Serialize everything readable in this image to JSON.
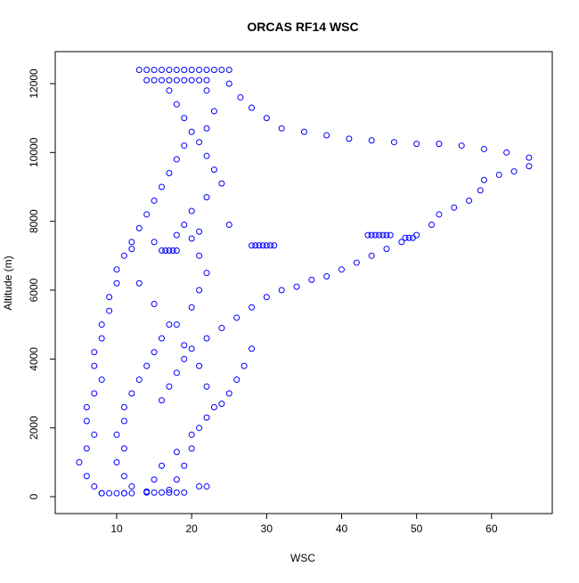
{
  "chart_data": {
    "type": "scatter",
    "title": "ORCAS RF14 WSC",
    "xlabel": "WSC",
    "ylabel": "Altitude (m)",
    "color": "#0000ff",
    "x": [
      13,
      14,
      15,
      16,
      17,
      18,
      19,
      20,
      21,
      22,
      23,
      24,
      25,
      14,
      15,
      16,
      17,
      18,
      19,
      20,
      21,
      22,
      25,
      26.5,
      28,
      30,
      32,
      35,
      38,
      41,
      44,
      47,
      50,
      53,
      56,
      59,
      62,
      65,
      65,
      63,
      61,
      59,
      58.5,
      57,
      55,
      53,
      52,
      50,
      48,
      46,
      44,
      42,
      40,
      38,
      36,
      34,
      32,
      30,
      28,
      26,
      24,
      22,
      20,
      19,
      18,
      17,
      16,
      43.5,
      44,
      44.5,
      45,
      45.5,
      46,
      46.5,
      48.5,
      49,
      49.5,
      28,
      28.5,
      29,
      29.5,
      30,
      30.5,
      31,
      16,
      16.5,
      17,
      17.5,
      18,
      17,
      18,
      19,
      20,
      19,
      18,
      17,
      16,
      15,
      14,
      13,
      12,
      11,
      10,
      10,
      9,
      9,
      8,
      8,
      7,
      7,
      8,
      7,
      6,
      6,
      7,
      6,
      5,
      6,
      7,
      8,
      22,
      23,
      22,
      21,
      22,
      23,
      24,
      22,
      20,
      19,
      20,
      21,
      22,
      21,
      20,
      18,
      16,
      15,
      14,
      13,
      12,
      11,
      11,
      10,
      11,
      10,
      11,
      12,
      11,
      8,
      9,
      10,
      11,
      12,
      14,
      15,
      16,
      17,
      18,
      19,
      21,
      22,
      13,
      15,
      17,
      19,
      21,
      22,
      23,
      21,
      20,
      19,
      18,
      17,
      28,
      27,
      26,
      25,
      24,
      22,
      20,
      18,
      16,
      15,
      14,
      25,
      21,
      18,
      15,
      12
    ],
    "values": [
      12400,
      12400,
      12400,
      12400,
      12400,
      12400,
      12400,
      12400,
      12400,
      12400,
      12400,
      12400,
      12400,
      12100,
      12100,
      12100,
      12100,
      12100,
      12100,
      12100,
      12100,
      12100,
      12000,
      11600,
      11300,
      11000,
      10700,
      10600,
      10500,
      10400,
      10350,
      10300,
      10250,
      10250,
      10200,
      10100,
      10000,
      9850,
      9600,
      9450,
      9350,
      9200,
      8900,
      8600,
      8400,
      8200,
      7900,
      7600,
      7400,
      7200,
      7000,
      6800,
      6600,
      6400,
      6300,
      6100,
      6000,
      5800,
      5500,
      5200,
      4900,
      4600,
      4300,
      4000,
      3600,
      3200,
      2800,
      7600,
      7600,
      7600,
      7600,
      7600,
      7600,
      7600,
      7520,
      7520,
      7520,
      7300,
      7300,
      7300,
      7300,
      7300,
      7300,
      7300,
      7150,
      7150,
      7150,
      7150,
      7150,
      11800,
      11400,
      11000,
      10600,
      10200,
      9800,
      9400,
      9000,
      8600,
      8200,
      7800,
      7400,
      7000,
      6600,
      6200,
      5800,
      5400,
      5000,
      4600,
      4200,
      3800,
      3400,
      3000,
      2600,
      2200,
      1800,
      1400,
      1000,
      600,
      300,
      100,
      11800,
      11200,
      10700,
      10300,
      9900,
      9500,
      9100,
      8700,
      8300,
      7900,
      7500,
      7000,
      6500,
      6000,
      5500,
      5000,
      4600,
      4200,
      3800,
      3400,
      3000,
      2600,
      2200,
      1800,
      1400,
      1000,
      600,
      300,
      100,
      100,
      100,
      100,
      100,
      100,
      120,
      120,
      120,
      120,
      120,
      120,
      300,
      300,
      6200,
      5600,
      5000,
      4400,
      3800,
      3200,
      2600,
      2000,
      1400,
      900,
      500,
      200,
      4300,
      3800,
      3400,
      3000,
      2700,
      2300,
      1800,
      1300,
      900,
      500,
      150,
      7900,
      7700,
      7600,
      7400,
      7200
    ],
    "xlim": [
      1.8,
      68.1
    ],
    "ylim": [
      -490,
      12930
    ],
    "xticks": [
      10,
      20,
      30,
      40,
      50,
      60
    ],
    "yticks": [
      0,
      2000,
      4000,
      6000,
      8000,
      10000,
      12000
    ]
  }
}
